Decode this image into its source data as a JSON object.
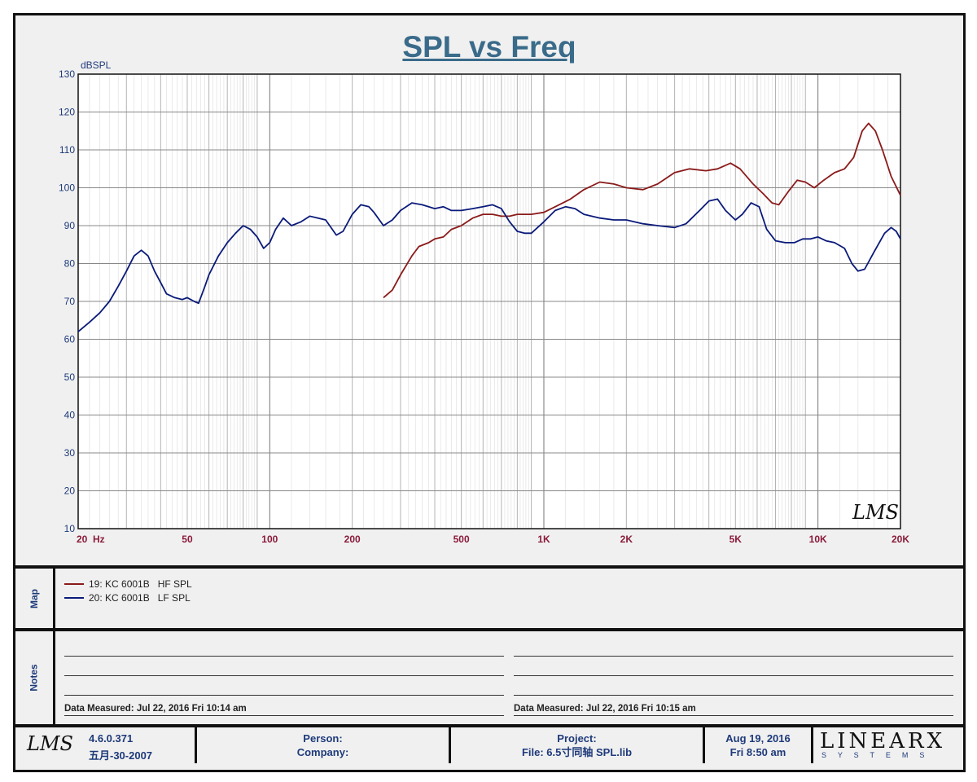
{
  "chart_data": {
    "type": "line",
    "title": "SPL vs Freq",
    "ylabel": "dBSPL",
    "xscale": "log",
    "xlim": [
      20,
      20000
    ],
    "ylim": [
      10,
      130
    ],
    "yticks": [
      10,
      20,
      30,
      40,
      50,
      60,
      70,
      80,
      90,
      100,
      110,
      120,
      130
    ],
    "xtick_labels": [
      {
        "f": 20,
        "label": "20  Hz"
      },
      {
        "f": 50,
        "label": "50"
      },
      {
        "f": 100,
        "label": "100"
      },
      {
        "f": 200,
        "label": "200"
      },
      {
        "f": 500,
        "label": "500"
      },
      {
        "f": 1000,
        "label": "1K"
      },
      {
        "f": 2000,
        "label": "2K"
      },
      {
        "f": 5000,
        "label": "5K"
      },
      {
        "f": 10000,
        "label": "10K"
      },
      {
        "f": 20000,
        "label": "20K"
      }
    ],
    "grid": true,
    "series": [
      {
        "name": "19: KC 6001B   HF SPL",
        "color": "#8b1a1a",
        "points": [
          [
            260,
            71
          ],
          [
            280,
            73
          ],
          [
            300,
            77
          ],
          [
            330,
            82
          ],
          [
            350,
            84.5
          ],
          [
            380,
            85.5
          ],
          [
            400,
            86.5
          ],
          [
            430,
            87
          ],
          [
            460,
            89
          ],
          [
            500,
            90
          ],
          [
            550,
            92
          ],
          [
            600,
            93
          ],
          [
            650,
            93
          ],
          [
            700,
            92.5
          ],
          [
            750,
            92.5
          ],
          [
            800,
            93
          ],
          [
            900,
            93
          ],
          [
            1000,
            93.5
          ],
          [
            1100,
            95
          ],
          [
            1250,
            97
          ],
          [
            1400,
            99.5
          ],
          [
            1600,
            101.5
          ],
          [
            1800,
            101
          ],
          [
            2000,
            100
          ],
          [
            2300,
            99.5
          ],
          [
            2600,
            101
          ],
          [
            3000,
            104
          ],
          [
            3400,
            105
          ],
          [
            3900,
            104.5
          ],
          [
            4300,
            105
          ],
          [
            4800,
            106.5
          ],
          [
            5200,
            105
          ],
          [
            5800,
            101
          ],
          [
            6300,
            98.5
          ],
          [
            6800,
            96
          ],
          [
            7200,
            95.5
          ],
          [
            7800,
            99
          ],
          [
            8400,
            102
          ],
          [
            9000,
            101.5
          ],
          [
            9700,
            100
          ],
          [
            10500,
            102
          ],
          [
            11500,
            104
          ],
          [
            12500,
            105
          ],
          [
            13500,
            108
          ],
          [
            14500,
            115
          ],
          [
            15300,
            117
          ],
          [
            16200,
            115
          ],
          [
            17200,
            110
          ],
          [
            18500,
            103
          ],
          [
            20000,
            98
          ]
        ]
      },
      {
        "name": "20: KC 6001B   LF SPL",
        "color": "#0a1a7a",
        "points": [
          [
            20,
            62
          ],
          [
            22,
            64.5
          ],
          [
            24,
            67
          ],
          [
            26,
            70
          ],
          [
            28,
            74
          ],
          [
            30,
            78
          ],
          [
            32,
            82
          ],
          [
            34,
            83.5
          ],
          [
            36,
            82
          ],
          [
            38,
            78
          ],
          [
            40,
            75
          ],
          [
            42,
            72
          ],
          [
            45,
            71
          ],
          [
            48,
            70.5
          ],
          [
            50,
            71
          ],
          [
            53,
            70
          ],
          [
            55,
            69.5
          ],
          [
            58,
            74
          ],
          [
            60,
            77
          ],
          [
            65,
            82
          ],
          [
            70,
            85.5
          ],
          [
            75,
            88
          ],
          [
            80,
            90
          ],
          [
            85,
            89
          ],
          [
            90,
            87
          ],
          [
            95,
            84
          ],
          [
            100,
            85.5
          ],
          [
            105,
            89
          ],
          [
            112,
            92
          ],
          [
            120,
            90
          ],
          [
            130,
            91
          ],
          [
            140,
            92.5
          ],
          [
            150,
            92
          ],
          [
            160,
            91.5
          ],
          [
            175,
            87.5
          ],
          [
            185,
            88.5
          ],
          [
            200,
            93
          ],
          [
            215,
            95.5
          ],
          [
            230,
            95
          ],
          [
            240,
            93.5
          ],
          [
            260,
            90
          ],
          [
            280,
            91.5
          ],
          [
            300,
            94
          ],
          [
            330,
            96
          ],
          [
            360,
            95.5
          ],
          [
            400,
            94.5
          ],
          [
            430,
            95
          ],
          [
            460,
            94
          ],
          [
            500,
            94
          ],
          [
            550,
            94.5
          ],
          [
            600,
            95
          ],
          [
            650,
            95.5
          ],
          [
            700,
            94.5
          ],
          [
            750,
            91
          ],
          [
            800,
            88.5
          ],
          [
            850,
            88
          ],
          [
            900,
            88
          ],
          [
            1000,
            91
          ],
          [
            1100,
            94
          ],
          [
            1200,
            95
          ],
          [
            1300,
            94.5
          ],
          [
            1400,
            93
          ],
          [
            1600,
            92
          ],
          [
            1800,
            91.5
          ],
          [
            2000,
            91.5
          ],
          [
            2300,
            90.5
          ],
          [
            2600,
            90
          ],
          [
            3000,
            89.5
          ],
          [
            3300,
            90.5
          ],
          [
            3700,
            94
          ],
          [
            4000,
            96.5
          ],
          [
            4300,
            97
          ],
          [
            4600,
            94
          ],
          [
            5000,
            91.5
          ],
          [
            5300,
            93
          ],
          [
            5700,
            96
          ],
          [
            6100,
            95
          ],
          [
            6500,
            89
          ],
          [
            7000,
            86
          ],
          [
            7600,
            85.5
          ],
          [
            8200,
            85.5
          ],
          [
            8800,
            86.5
          ],
          [
            9400,
            86.5
          ],
          [
            10000,
            87
          ],
          [
            10700,
            86
          ],
          [
            11500,
            85.5
          ],
          [
            12500,
            84
          ],
          [
            13300,
            80
          ],
          [
            14000,
            78
          ],
          [
            14800,
            78.5
          ],
          [
            16000,
            83
          ],
          [
            17500,
            88
          ],
          [
            18500,
            89.5
          ],
          [
            19300,
            88.5
          ],
          [
            20000,
            86.5
          ]
        ]
      }
    ]
  },
  "map": {
    "tab_label": "Map"
  },
  "notes": {
    "tab_label": "Notes",
    "left_measured": "Data Measured: Jul 22, 2016  Fri 10:14 am",
    "right_measured": "Data Measured: Jul 22, 2016  Fri 10:15 am"
  },
  "footer": {
    "version": "4.6.0.371",
    "build_date": "五月-30-2007",
    "person_label": "Person:",
    "company_label": "Company:",
    "project_label": "Project:",
    "file_label": "File: 6.5寸同轴 SPL.lib",
    "date": "Aug 19, 2016",
    "time": "Fri  8:50 am",
    "brand": "LINEARX",
    "brand_sub": "S  Y  S  T  E  M  S"
  },
  "watermark": "LMS",
  "colors": {
    "title": "#3a6b8a",
    "axis_text": "#1e3a7a",
    "xtick_text": "#8b1a3a"
  }
}
